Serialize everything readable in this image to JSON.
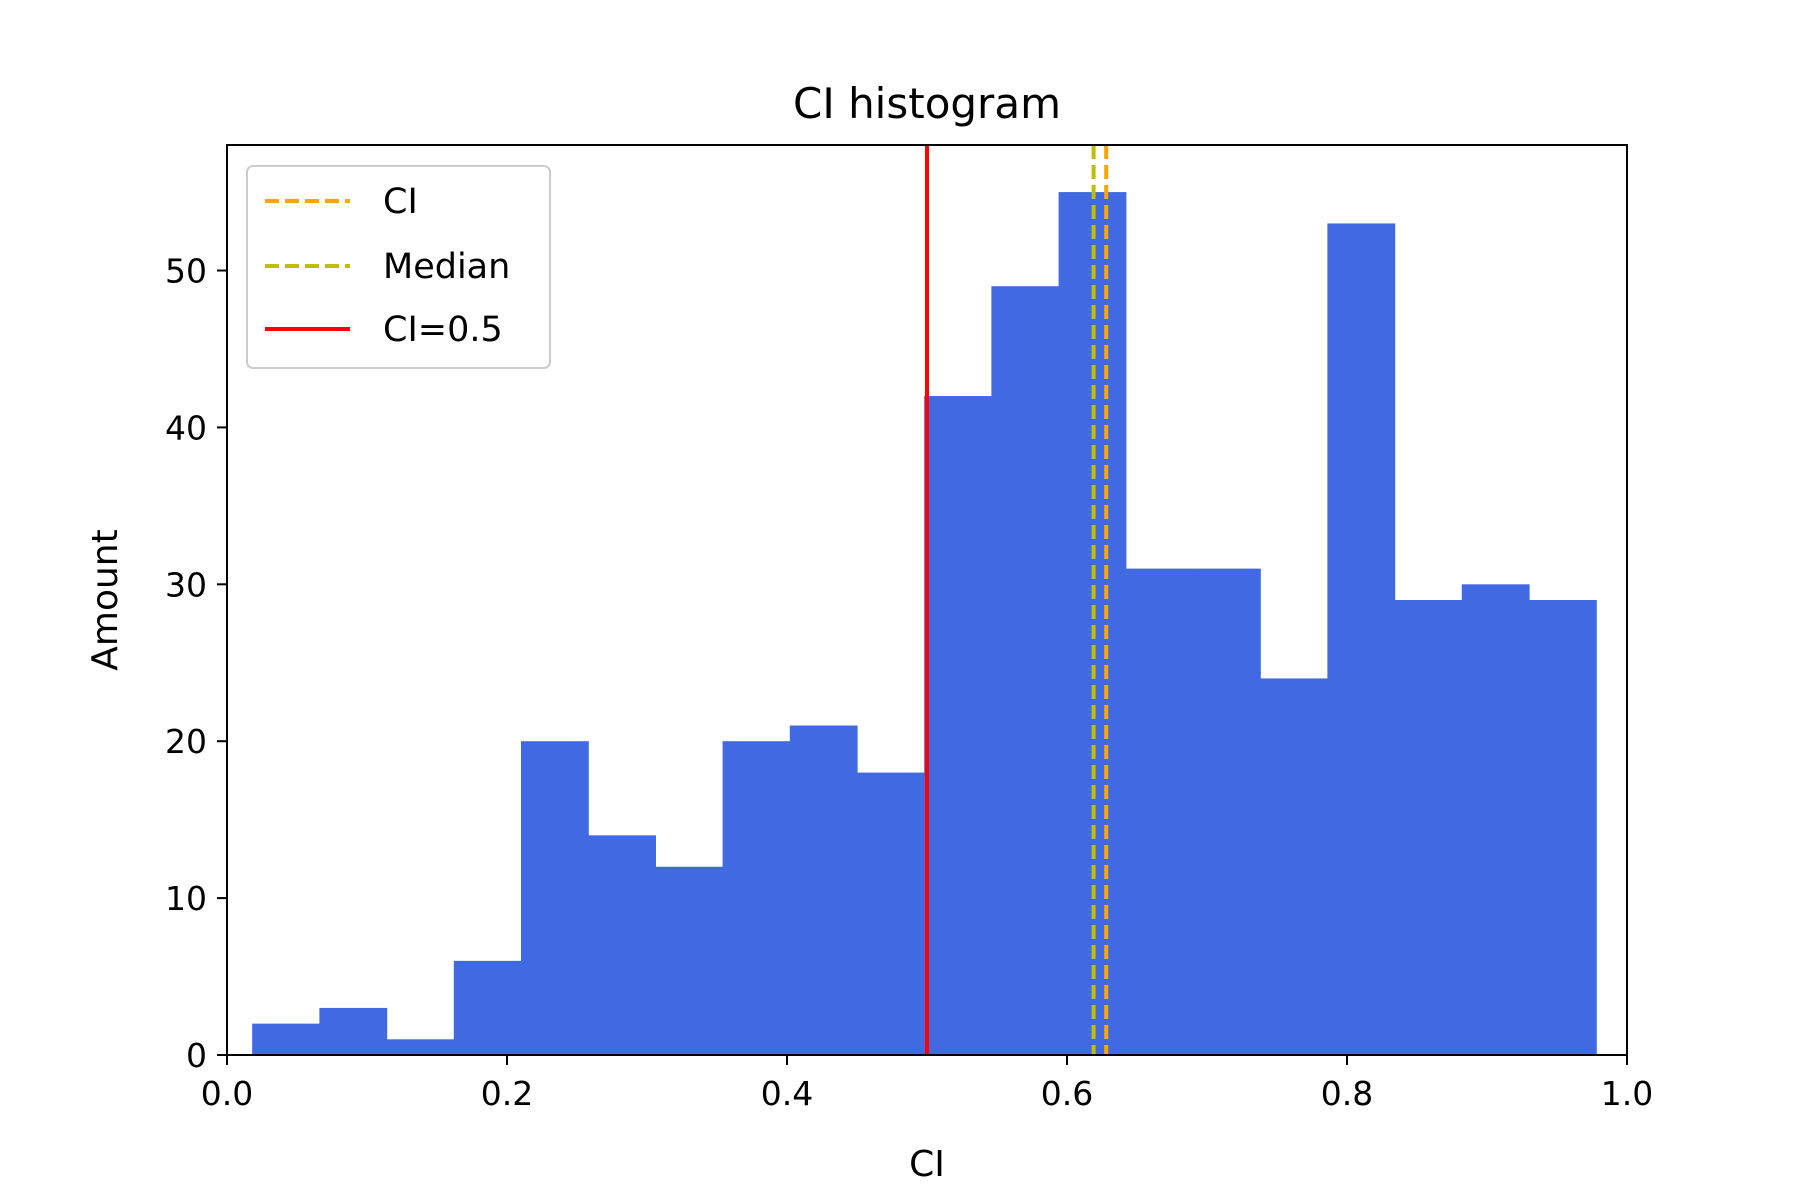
{
  "chart_data": {
    "type": "bar",
    "title": "CI histogram",
    "xlabel": "CI",
    "ylabel": "Amount",
    "xlim": [
      0.0,
      1.0
    ],
    "ylim": [
      0,
      58
    ],
    "x_ticks": [
      "0.0",
      "0.2",
      "0.4",
      "0.6",
      "0.8",
      "1.0"
    ],
    "x_tick_values": [
      0.0,
      0.2,
      0.4,
      0.6,
      0.8,
      1.0
    ],
    "y_ticks": [
      "0",
      "10",
      "20",
      "30",
      "40",
      "50"
    ],
    "y_tick_values": [
      0,
      10,
      20,
      30,
      40,
      50
    ],
    "bin_edges": [
      0.018,
      0.066,
      0.114,
      0.162,
      0.21,
      0.258,
      0.306,
      0.354,
      0.402,
      0.45,
      0.498,
      0.546,
      0.594,
      0.642,
      0.69,
      0.738,
      0.786,
      0.834,
      0.882,
      0.93,
      0.978
    ],
    "counts": [
      2,
      3,
      1,
      6,
      20,
      14,
      12,
      20,
      21,
      18,
      42,
      49,
      55,
      31,
      31,
      24,
      53,
      29,
      30,
      29
    ],
    "bar_color": "#4169e1",
    "reference_lines": [
      {
        "name": "CI",
        "x": 0.628,
        "color": "#ffa500",
        "style": "dashed"
      },
      {
        "name": "Median",
        "x": 0.619,
        "color": "#bfbf00",
        "style": "dashed"
      },
      {
        "name": "CI=0.5",
        "x": 0.5,
        "color": "#ff0000",
        "style": "solid"
      }
    ],
    "legend": {
      "position": "upper-left",
      "entries": [
        "CI",
        "Median",
        "CI=0.5"
      ]
    }
  }
}
